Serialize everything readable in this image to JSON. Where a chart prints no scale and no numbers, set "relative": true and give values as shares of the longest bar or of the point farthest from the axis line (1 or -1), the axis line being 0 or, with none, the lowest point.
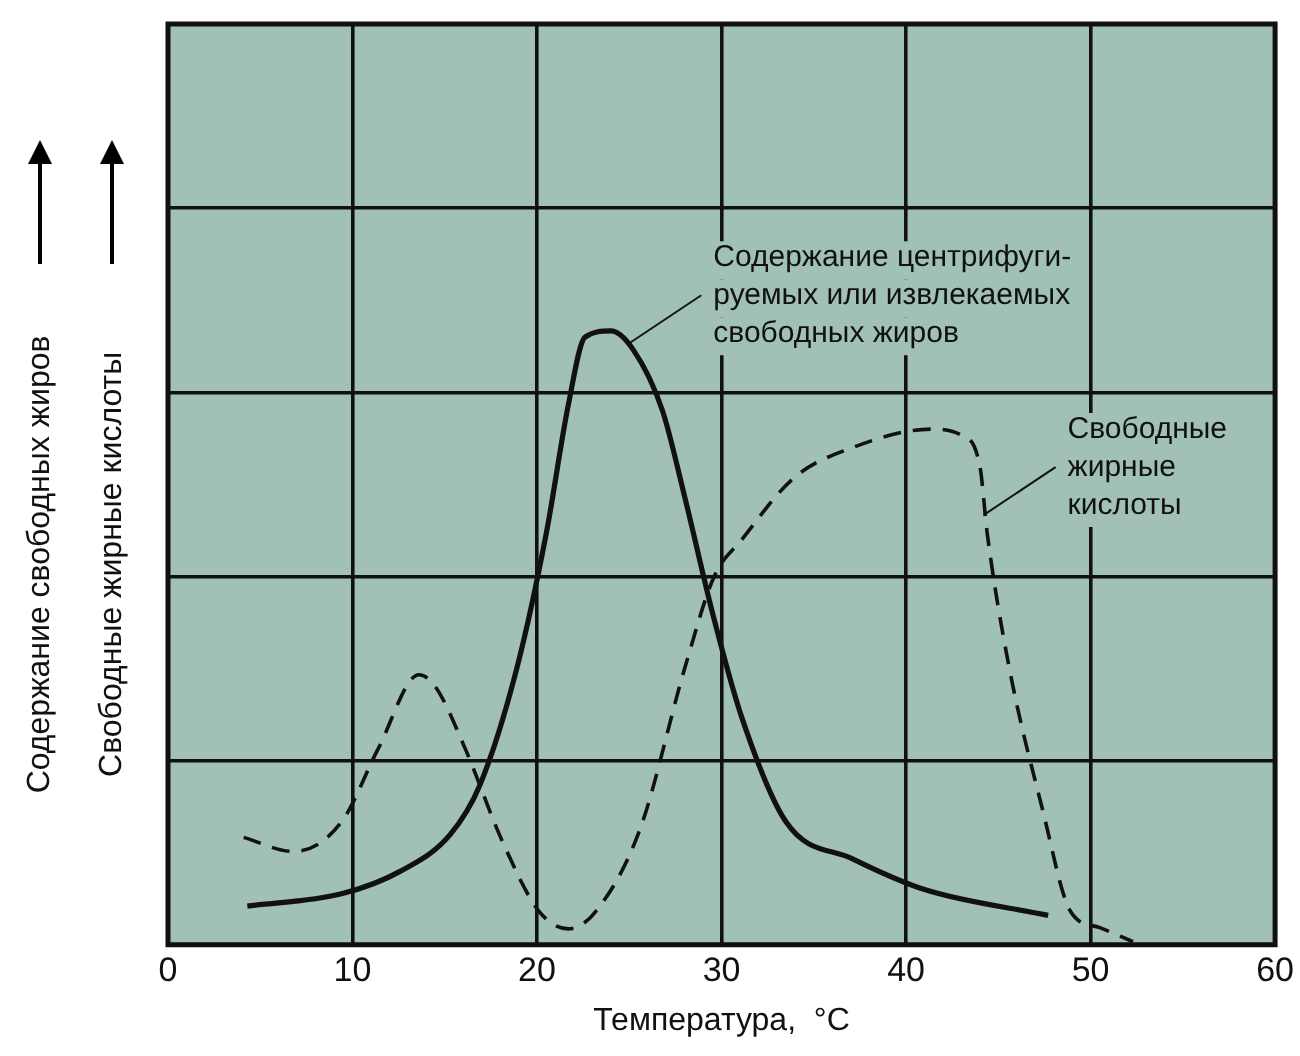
{
  "chart_data": {
    "type": "line",
    "relative": true,
    "xlabel": "Температура,  °C",
    "ylabel": "Содержание свободных жиров",
    "y2label": "Свободные жирные кислоты",
    "xlim": [
      0,
      60
    ],
    "xticks": [
      0,
      10,
      20,
      30,
      40,
      50,
      60
    ],
    "grid": true,
    "legend": false,
    "marker": "none",
    "series": [
      {
        "color": "#111111",
        "line_style": "solid",
        "x": [
          4.3,
          9.4,
          12.6,
          15.3,
          16.9,
          18.9,
          20.5,
          21.7,
          22.6,
          24.0,
          25.2,
          26.8,
          28.0,
          29.6,
          31.1,
          33.5,
          37.1,
          41.0,
          47.7
        ],
        "values": [
          0.063,
          0.083,
          0.12,
          0.18,
          0.26,
          0.45,
          0.67,
          0.88,
          0.99,
          1.0,
          0.97,
          0.87,
          0.73,
          0.53,
          0.37,
          0.2,
          0.14,
          0.09,
          0.048
        ]
      },
      {
        "color": "#111111",
        "line_style": "dashed",
        "x": [
          4.1,
          6.8,
          9.4,
          11.4,
          13.6,
          14.5,
          16.1,
          18.1,
          20.1,
          21.7,
          23.2,
          25.6,
          28.0,
          29.6,
          31.1,
          33.9,
          37.1,
          41.4,
          43.0,
          44.0,
          44.4,
          45.6,
          47.4,
          48.9,
          50.5,
          52.3
        ],
        "values": [
          0.175,
          0.152,
          0.2,
          0.32,
          0.44,
          0.42,
          0.32,
          0.17,
          0.055,
          0.026,
          0.055,
          0.19,
          0.45,
          0.6,
          0.66,
          0.76,
          0.81,
          0.84,
          0.83,
          0.78,
          0.67,
          0.45,
          0.22,
          0.055,
          0.028,
          0.005
        ]
      }
    ],
    "annotations": [
      {
        "text": "Содержание центрифуги-\nруемых или извлекаемых\nсвободных жиров",
        "x": 25.0,
        "y": 0.98
      },
      {
        "text": "Свободные\nжирные\nкислоты",
        "x": 44.2,
        "y": 0.7
      }
    ]
  }
}
